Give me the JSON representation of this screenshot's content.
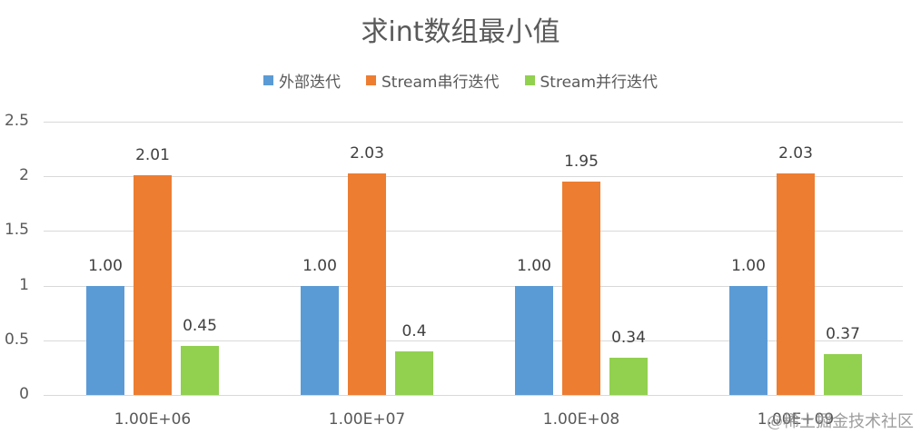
{
  "chart_data": {
    "type": "bar",
    "title": "求int数组最小值",
    "xlabel": "",
    "ylabel": "",
    "categories": [
      "1.00E+06",
      "1.00E+07",
      "1.00E+08",
      "1.00E+09"
    ],
    "series": [
      {
        "name": "外部迭代",
        "color": "#5b9bd5",
        "values": [
          1.0,
          1.0,
          1.0,
          1.0
        ],
        "labels": [
          "1.00",
          "1.00",
          "1.00",
          "1.00"
        ]
      },
      {
        "name": "Stream串行迭代",
        "color": "#ed7d31",
        "values": [
          2.01,
          2.03,
          1.95,
          2.03
        ],
        "labels": [
          "2.01",
          "2.03",
          "1.95",
          "2.03"
        ]
      },
      {
        "name": "Stream并行迭代",
        "color": "#92d050",
        "values": [
          0.45,
          0.4,
          0.34,
          0.37
        ],
        "labels": [
          "0.45",
          "0.4",
          "0.34",
          "0.37"
        ]
      }
    ],
    "ylim": [
      0,
      2.5
    ],
    "yticks": [
      "0",
      "0.5",
      "1",
      "1.5",
      "2",
      "2.5"
    ],
    "grid": true,
    "legend_position": "top"
  },
  "watermark": "@稀土掘金技术社区"
}
